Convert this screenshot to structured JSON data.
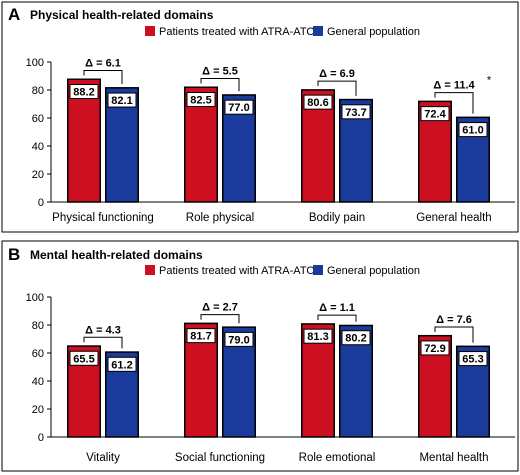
{
  "chart_data": [
    {
      "type": "bar",
      "panel": "A",
      "title": "Physical health-related domains",
      "categories": [
        "Physical functioning",
        "Role physical",
        "Bodily pain",
        "General health"
      ],
      "series": [
        {
          "name": "Patients treated with ATRA-ATO",
          "values": [
            88.2,
            82.5,
            80.6,
            72.4
          ],
          "color": "#cc1021"
        },
        {
          "name": "General population",
          "values": [
            82.1,
            77.0,
            73.7,
            61.0
          ],
          "color": "#1a3a9c"
        }
      ],
      "value_labels": [
        [
          "88.2",
          "82.5",
          "80.6",
          "72.4"
        ],
        [
          "82.1",
          "77.0",
          "73.7",
          "61.0"
        ]
      ],
      "deltas": [
        "Δ = 6.1",
        "Δ = 5.5",
        "Δ = 6.9",
        "Δ = 11.4"
      ],
      "significance": [
        "",
        "",
        "",
        "*"
      ],
      "ylim": [
        0,
        100
      ],
      "yticks": [
        "0",
        "20",
        "40",
        "60",
        "80",
        "100"
      ],
      "legend": "top-right",
      "grid": false
    },
    {
      "type": "bar",
      "panel": "B",
      "title": "Mental health-related domains",
      "categories": [
        "Vitality",
        "Social functioning",
        "Role emotional",
        "Mental health"
      ],
      "series": [
        {
          "name": "Patients treated with ATRA-ATO",
          "values": [
            65.5,
            81.7,
            81.3,
            72.9
          ],
          "color": "#cc1021"
        },
        {
          "name": "General population",
          "values": [
            61.2,
            79.0,
            80.2,
            65.3
          ],
          "color": "#1a3a9c"
        }
      ],
      "value_labels": [
        [
          "65.5",
          "81.7",
          "81.3",
          "72.9"
        ],
        [
          "61.2",
          "79.0",
          "80.2",
          "65.3"
        ]
      ],
      "deltas": [
        "Δ = 4.3",
        "Δ = 2.7",
        "Δ = 1.1",
        "Δ = 7.6"
      ],
      "significance": [
        "",
        "",
        "",
        ""
      ],
      "ylim": [
        0,
        100
      ],
      "yticks": [
        "0",
        "20",
        "40",
        "60",
        "80",
        "100"
      ],
      "legend": "top-right",
      "grid": false
    }
  ]
}
